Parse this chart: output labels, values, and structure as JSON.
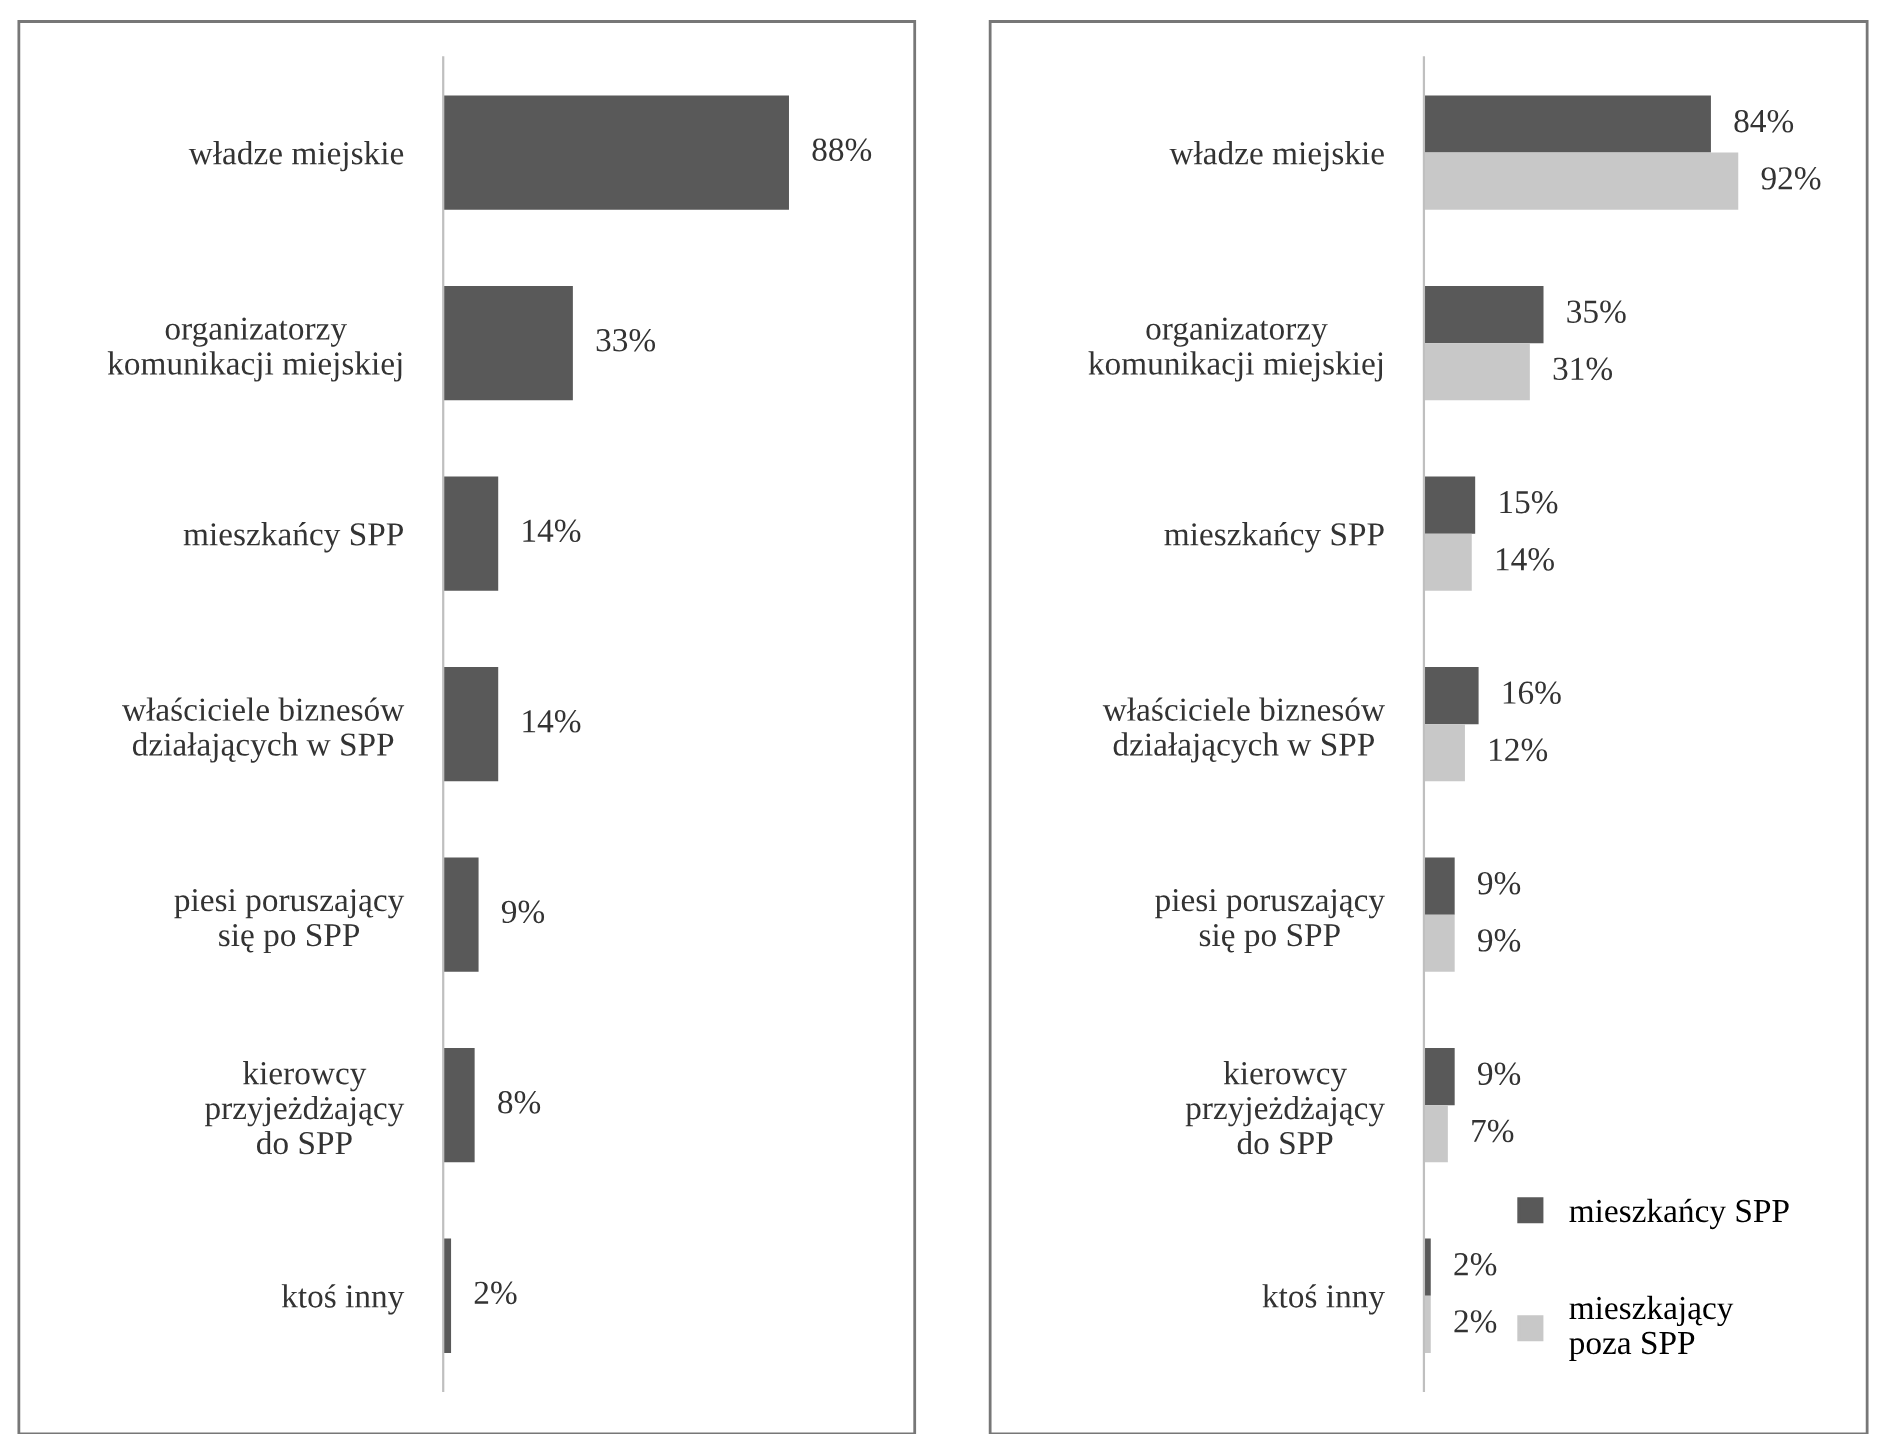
{
  "chart_data": [
    {
      "type": "bar",
      "orientation": "horizontal",
      "categories": [
        "władze miejskie",
        "organizatorzy\nkomunikacji miejskiej",
        "mieszkańcy SPP",
        "właściciele biznesów\ndziałających w SPP",
        "piesi poruszający\nsię po SPP",
        "kierowcy\nprzyjeżdżający\ndo SPP",
        "ktoś inny"
      ],
      "series": [
        {
          "color": "#595959",
          "values": [
            88,
            33,
            14,
            14,
            9,
            8,
            2
          ],
          "value_labels": [
            "88%",
            "33%",
            "14%",
            "14%",
            "9%",
            "8%",
            "2%"
          ]
        }
      ],
      "tick_labels": "y",
      "legend": false
    },
    {
      "type": "bar",
      "orientation": "horizontal",
      "categories": [
        "władze miejskie",
        "organizatorzy\nkomunikacji miejskiej",
        "mieszkańcy SPP",
        "właściciele biznesów\ndziałających w SPP",
        "piesi poruszający\nsię po SPP",
        "kierowcy\nprzyjeżdżający\ndo SPP",
        "ktoś inny"
      ],
      "series": [
        {
          "name": "mieszkańcy SPP",
          "color": "#595959",
          "values": [
            84,
            35,
            15,
            16,
            9,
            9,
            2
          ],
          "value_labels": [
            "84%",
            "35%",
            "15%",
            "16%",
            "9%",
            "9%",
            "2%"
          ]
        },
        {
          "name": "mieszkający\npoza SPP",
          "color": "#c8c8c8",
          "values": [
            92,
            31,
            14,
            12,
            9,
            7,
            2
          ],
          "value_labels": [
            "92%",
            "31%",
            "14%",
            "12%",
            "9%",
            "7%",
            "2%"
          ]
        }
      ],
      "tick_labels": "y",
      "legend": "bottom right"
    }
  ]
}
